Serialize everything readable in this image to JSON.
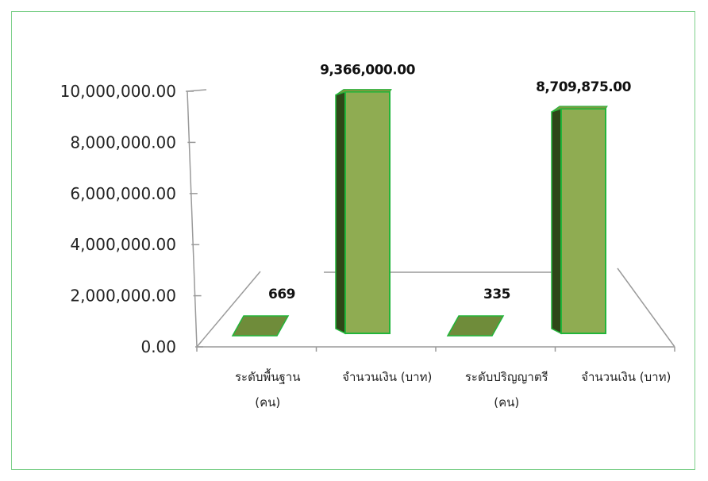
{
  "chart_data": {
    "type": "bar",
    "style": "3d-column",
    "categories": [
      [
        "ระดับพื้นฐาน",
        "(คน)"
      ],
      [
        "จำนวนเงิน (บาท)"
      ],
      [
        "ระดับปริญญาตรี",
        "(คน)"
      ],
      [
        "จำนวนเงิน (บาท)"
      ]
    ],
    "values": [
      669,
      9366000,
      335,
      8709875
    ],
    "data_labels": [
      "669",
      "9,366,000.00",
      "335",
      "8,709,875.00"
    ],
    "yticks": [
      "0.00",
      "2,000,000.00",
      "4,000,000.00",
      "6,000,000.00",
      "8,000,000.00",
      "10,000,000.00"
    ],
    "ylim": [
      0,
      10000000
    ],
    "grid": "back-wall-midline",
    "colors": {
      "bar_front": "#8fac52",
      "bar_top": "#7c9a3e",
      "bar_side": "#2e4718",
      "bar_edge": "#22b53a",
      "frame": "#7fd08c",
      "axis": "#9a9a9a"
    }
  }
}
